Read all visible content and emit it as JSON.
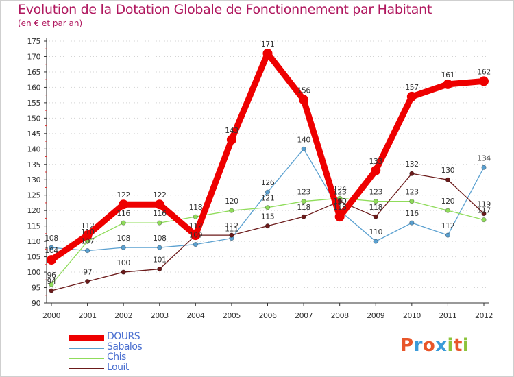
{
  "title": "Evolution de la Dotation Globale de Fonctionnement par Habitant",
  "subtitle": "(en € et par an)",
  "brand": {
    "text": "Proxiti",
    "colors": [
      "#e8562a",
      "#3b9bd9",
      "#e8562a",
      "#3b9bd9",
      "#8cc43c",
      "#e8562a",
      "#8cc43c"
    ]
  },
  "chart_data": {
    "type": "line",
    "title": "Evolution de la Dotation Globale de Fonctionnement par Habitant",
    "subtitle": "(en € et par an)",
    "x": [
      "2000",
      "2001",
      "2002",
      "2003",
      "2004",
      "2005",
      "2006",
      "2007",
      "2008",
      "2009",
      "2010",
      "2011",
      "2012"
    ],
    "ylim": [
      90,
      175
    ],
    "yticks": [
      90,
      95,
      100,
      105,
      110,
      115,
      120,
      125,
      130,
      135,
      140,
      145,
      150,
      155,
      160,
      165,
      170,
      175
    ],
    "grid": "horizontal dotted",
    "legend": "bottom-left",
    "series": [
      {
        "name": "DOURS",
        "color": "#ee0000",
        "values": [
          104,
          112,
          122,
          122,
          112,
          143,
          171,
          156,
          118,
          133,
          157,
          161,
          162
        ]
      },
      {
        "name": "Sabalos",
        "color": "#5aa0d0",
        "values": [
          108,
          107,
          108,
          108,
          109,
          111,
          126,
          140,
          120,
          110,
          116,
          112,
          134
        ]
      },
      {
        "name": "Chis",
        "color": "#8fdc5a",
        "values": [
          96,
          110,
          116,
          116,
          118,
          120,
          121,
          123,
          124,
          123,
          123,
          120,
          117
        ]
      },
      {
        "name": "Louit",
        "color": "#6b1a1a",
        "values": [
          94,
          97,
          100,
          101,
          112,
          112,
          115,
          118,
          123,
          118,
          132,
          130,
          119
        ]
      }
    ],
    "data_labels": {
      "DOURS": [
        "104",
        "112",
        "122",
        "122",
        "112",
        "143",
        "171",
        "156",
        "118",
        "133",
        "157",
        "161",
        "162"
      ],
      "Sabalos": [
        "108",
        "107",
        "108",
        "108",
        "109",
        "111",
        "126",
        "140",
        "120",
        "110",
        "116",
        "112",
        "134"
      ],
      "Chis": [
        "96",
        "110",
        "116",
        "116",
        "118",
        "120",
        "121",
        "123",
        "124",
        "123",
        "123",
        "120",
        "117"
      ],
      "Louit": [
        "94",
        "97",
        "100",
        "101",
        "112",
        "112",
        "115",
        "118",
        "123",
        "118",
        "132",
        "130",
        "119"
      ]
    }
  }
}
